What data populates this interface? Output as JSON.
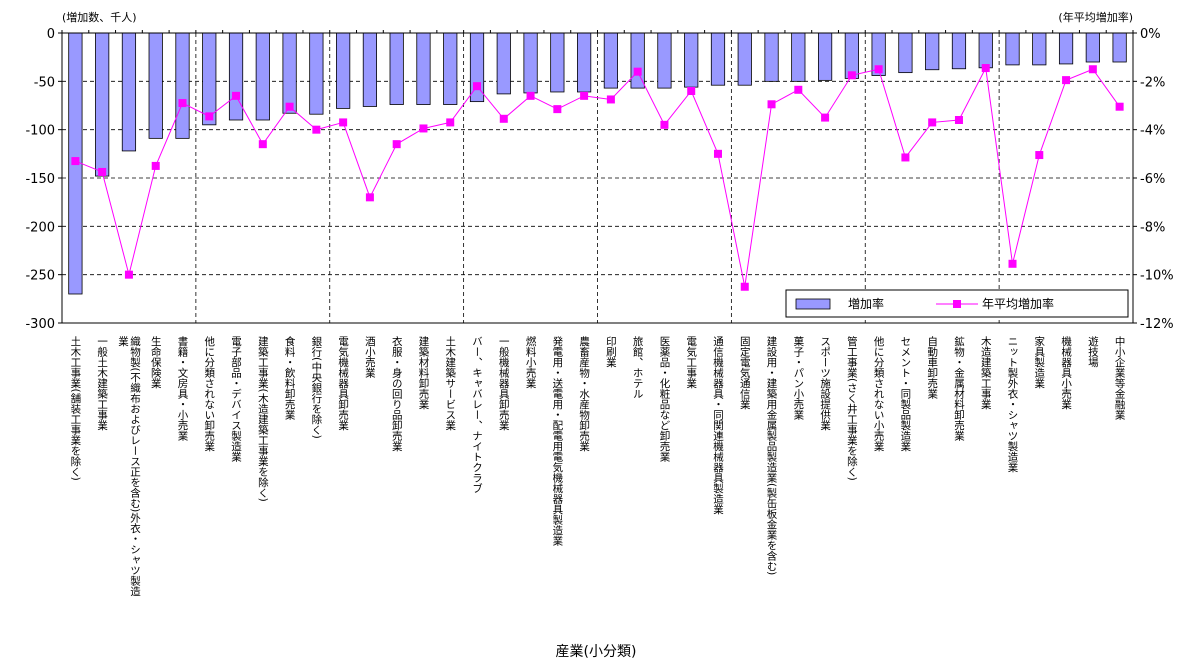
{
  "chart_data": {
    "type": "bar",
    "title": "",
    "xlabel": "産業(小分類)",
    "y_left_unit": "(増加数、千人)",
    "y_right_unit": "(年平均増加率)",
    "y_left_ticks": [
      "0",
      "-50",
      "-100",
      "-150",
      "-200",
      "-250",
      "-300"
    ],
    "y_right_ticks": [
      "0%",
      "-2%",
      "-4%",
      "-6%",
      "-8%",
      "-10%",
      "-12%"
    ],
    "ylim": [
      -300,
      0
    ],
    "y2lim": [
      -12,
      0
    ],
    "legend_position": "bottom-right",
    "categories": [
      "土木工事業(舗装工事業を除く)",
      "一般土木建築工事業",
      "織物製(不織布およびレース正を含む)外衣・シャツ製造業",
      "生命保険業",
      "書籍・文房具・小売業",
      "他に分類されない卸売業",
      "電子部品・デバイス製造業",
      "建築工事業(木造建築工事業を除く)",
      "食料・飲料卸売業",
      "銀行(中央銀行を除く)",
      "電気機械器具卸売業",
      "酒小売業",
      "衣服・身の回り品卸売業",
      "建築材料卸売業",
      "土木建築サービス業",
      "バー、キャバレー、ナイトクラブ",
      "一般機械器具卸売業",
      "燃料小売業",
      "発電用・送電用・配電用電気機械器具製造業",
      "農畜産物・水産物卸売業",
      "印刷業",
      "旅館、ホテル",
      "医薬品・化粧品など卸売業",
      "電気工事業",
      "通信機械器具・同関連機械器具製造業",
      "固定電気通信業",
      "建設用・建築用金属製品製造業(製缶板金業を含む)",
      "菓子・パン小売業",
      "スポーツ施設提供業",
      "管工事業(さく井工事業を除く)",
      "他に分類されない小売業",
      "セメント・同製品製造業",
      "自動車卸売業",
      "鉱物・金属材料卸売業",
      "木造建築工事業",
      "ニット製外衣・シャツ製造業",
      "家具製造業",
      "機械器具小売業",
      "遊技場",
      "中小企業等金融業"
    ],
    "series": [
      {
        "name": "増加率",
        "axis": "left",
        "values": [
          -270,
          -148,
          -122,
          -109,
          -109,
          -95,
          -90,
          -90,
          -83,
          -84,
          -78,
          -76,
          -74,
          -74,
          -74,
          -71,
          -63,
          -62,
          -61,
          -61,
          -57,
          -57,
          -57,
          -56,
          -54,
          -54,
          -50,
          -50,
          -49,
          -47,
          -44,
          -41,
          -38,
          -37,
          -36,
          -33,
          -33,
          -32,
          -30,
          -30
        ]
      },
      {
        "name": "年平均増加率",
        "axis": "right",
        "values": [
          -5.3,
          -5.75,
          -10.0,
          -5.5,
          -2.9,
          -3.45,
          -2.6,
          -4.6,
          -3.05,
          -4.0,
          -3.7,
          -6.8,
          -4.6,
          -3.95,
          -3.7,
          -2.2,
          -3.55,
          -2.6,
          -3.15,
          -2.6,
          -2.75,
          -1.6,
          -3.8,
          -2.4,
          -5.0,
          -10.5,
          -2.95,
          -2.35,
          -3.5,
          -1.75,
          -1.5,
          -5.15,
          -3.7,
          -3.6,
          -1.45,
          -9.55,
          -5.05,
          -1.95,
          -1.5,
          -3.05
        ]
      }
    ]
  }
}
